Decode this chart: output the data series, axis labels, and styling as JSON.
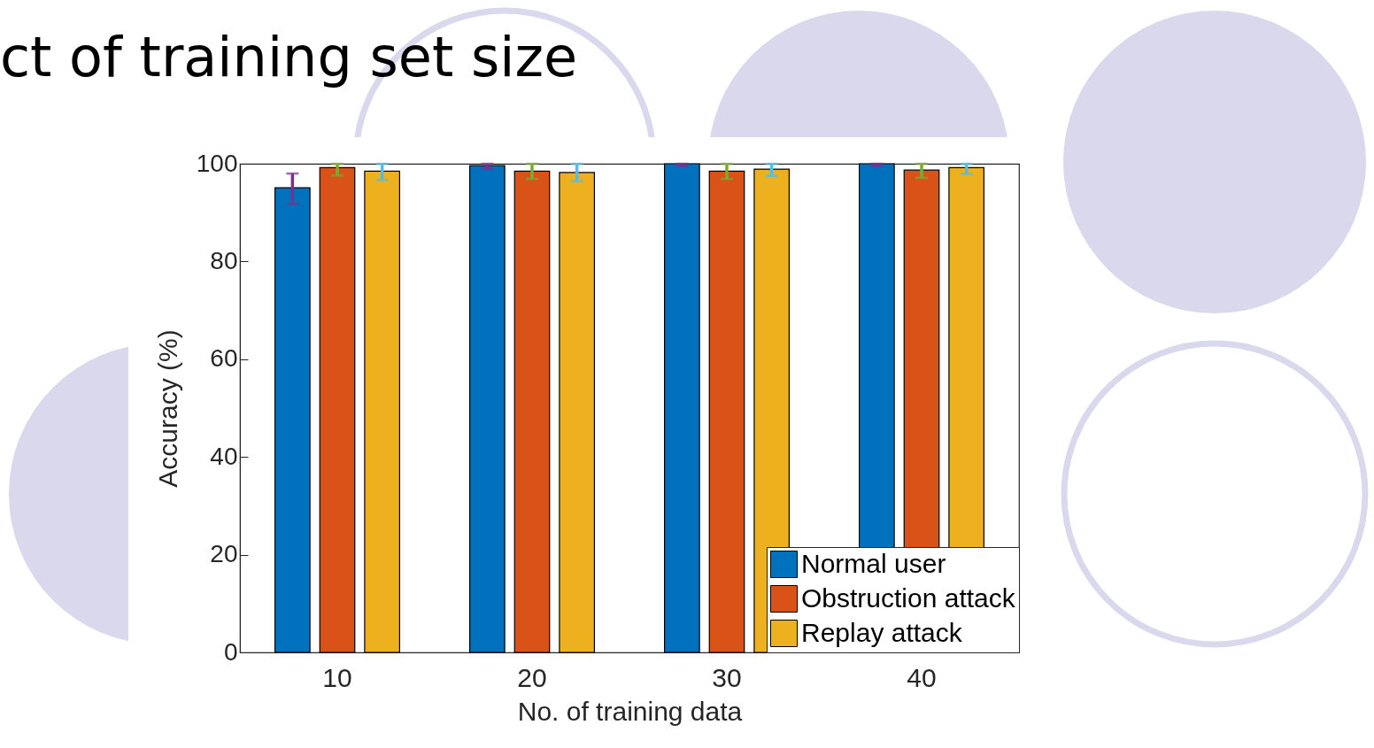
{
  "chart_data": {
    "type": "bar",
    "title": "ct of training set size",
    "xlabel": "No. of training data",
    "ylabel": "Accuracy (%)",
    "categories": [
      "10",
      "20",
      "30",
      "40"
    ],
    "series": [
      {
        "name": "Normal user",
        "color": "#0072bd",
        "values": [
          95.1,
          99.6,
          100,
          100
        ],
        "errors": [
          [
            91.8,
            98.0
          ],
          [
            98.9,
            100
          ],
          [
            99.5,
            100
          ],
          [
            99.5,
            100
          ]
        ]
      },
      {
        "name": "Obstruction attack",
        "color": "#d95319",
        "values": [
          99.2,
          98.5,
          98.5,
          98.7
        ],
        "errors": [
          [
            97.6,
            100
          ],
          [
            96.9,
            100
          ],
          [
            96.9,
            100
          ],
          [
            97.1,
            100
          ]
        ]
      },
      {
        "name": "Replay attack",
        "color": "#edb120",
        "values": [
          98.5,
          98.2,
          98.9,
          99.2
        ],
        "errors": [
          [
            96.7,
            100
          ],
          [
            96.4,
            100
          ],
          [
            97.5,
            100
          ],
          [
            97.9,
            100
          ]
        ]
      }
    ],
    "ylim": [
      0,
      100
    ],
    "yticks": [
      0,
      20,
      40,
      60,
      80,
      100
    ],
    "legend": "bottom right",
    "grid": false
  }
}
